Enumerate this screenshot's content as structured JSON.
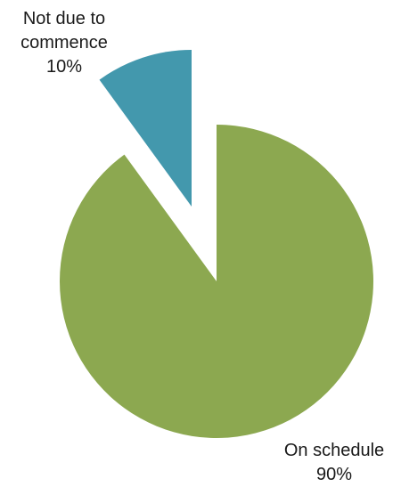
{
  "chart_data": {
    "type": "pie",
    "slices": [
      {
        "label_lines": [
          "On schedule",
          "90%"
        ],
        "value": 90,
        "color": "#8ca850"
      },
      {
        "label_lines": [
          "Not due to",
          "commence",
          "10%"
        ],
        "value": 10,
        "color": "#4398ad"
      }
    ]
  }
}
